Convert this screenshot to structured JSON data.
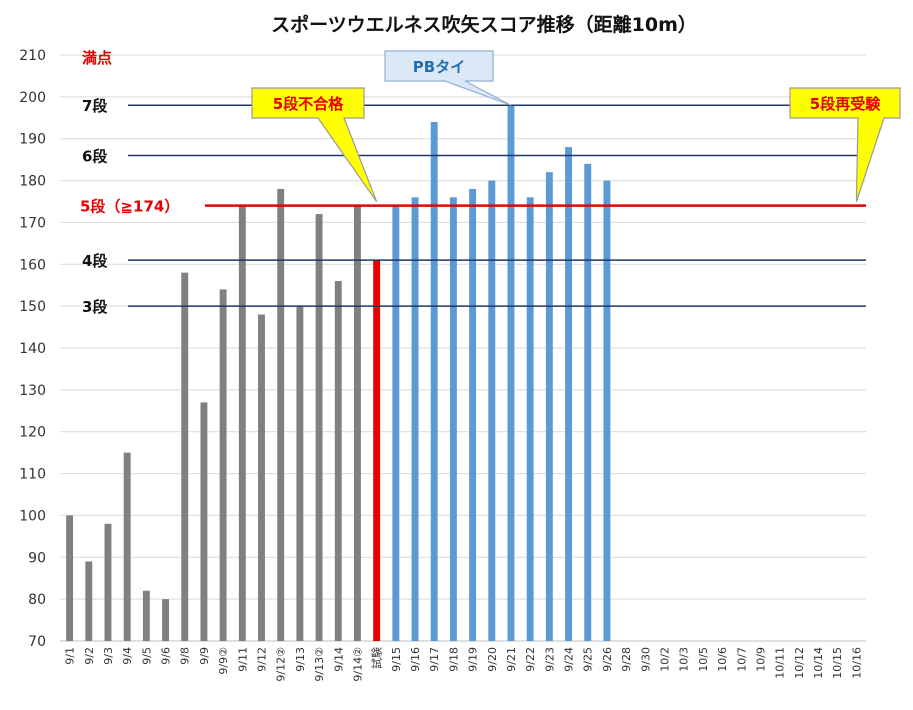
{
  "chart_data": {
    "type": "bar",
    "title": "スポーツウエルネス吹矢スコア推移（距離10m）",
    "xlabel": "",
    "ylabel": "",
    "ylim": [
      70,
      210
    ],
    "yticks": [
      70,
      80,
      90,
      100,
      110,
      120,
      130,
      140,
      150,
      160,
      170,
      180,
      190,
      200,
      210
    ],
    "grid": true,
    "categories": [
      "9/1",
      "9/2",
      "9/3",
      "9/4",
      "9/5",
      "9/6",
      "9/8",
      "9/9",
      "9/9②",
      "9/11",
      "9/12",
      "9/12②",
      "9/13",
      "9/13②",
      "9/14",
      "9/14②",
      "試験",
      "9/15",
      "9/16",
      "9/17",
      "9/18",
      "9/19",
      "9/20",
      "9/21",
      "9/22",
      "9/23",
      "9/24",
      "9/25",
      "9/26",
      "9/28",
      "9/30",
      "10/2",
      "10/3",
      "10/5",
      "10/6",
      "10/7",
      "10/9",
      "10/11",
      "10/12",
      "10/14",
      "10/15",
      "10/16"
    ],
    "values": [
      100,
      89,
      98,
      115,
      82,
      80,
      158,
      127,
      154,
      174,
      148,
      178,
      150,
      172,
      156,
      174,
      161,
      174,
      176,
      194,
      176,
      178,
      180,
      198,
      176,
      182,
      188,
      184,
      180,
      null,
      null,
      null,
      null,
      null,
      null,
      null,
      null,
      null,
      null,
      null,
      null,
      null
    ],
    "bar_groups": [
      "gray",
      "gray",
      "gray",
      "gray",
      "gray",
      "gray",
      "gray",
      "gray",
      "gray",
      "gray",
      "gray",
      "gray",
      "gray",
      "gray",
      "gray",
      "gray",
      "red",
      "blue",
      "blue",
      "blue",
      "blue",
      "blue",
      "blue",
      "blue",
      "blue",
      "blue",
      "blue",
      "blue",
      "blue",
      "blue",
      "blue",
      "blue",
      "blue",
      "blue",
      "blue",
      "blue",
      "blue",
      "blue",
      "blue",
      "blue",
      "blue",
      "blue"
    ],
    "colors": {
      "gray": "#808080",
      "red": "#e60000",
      "blue": "#5b9bd5",
      "navy": "#1f3864",
      "callout": "#ffff00"
    },
    "levels": [
      {
        "label": "満点",
        "value": 210,
        "color": "#e60000",
        "line": false
      },
      {
        "label": "7段",
        "value": 198,
        "color": "#111111",
        "line": true
      },
      {
        "label": "6段",
        "value": 186,
        "color": "#111111",
        "line": true
      },
      {
        "label": "5段（≧174）",
        "value": 174,
        "color": "#e60000",
        "line": true
      },
      {
        "label": "4段",
        "value": 161,
        "color": "#111111",
        "line": true
      },
      {
        "label": "3段",
        "value": 150,
        "color": "#111111",
        "line": true
      }
    ],
    "annotations": [
      {
        "text": "5段不合格",
        "style": "yellow-callout",
        "points_to": "試験"
      },
      {
        "text": "PBタイ",
        "style": "blue-callout",
        "points_to": "9/21"
      },
      {
        "text": "5段再受験",
        "style": "yellow-callout",
        "points_to": "10/16"
      }
    ]
  }
}
